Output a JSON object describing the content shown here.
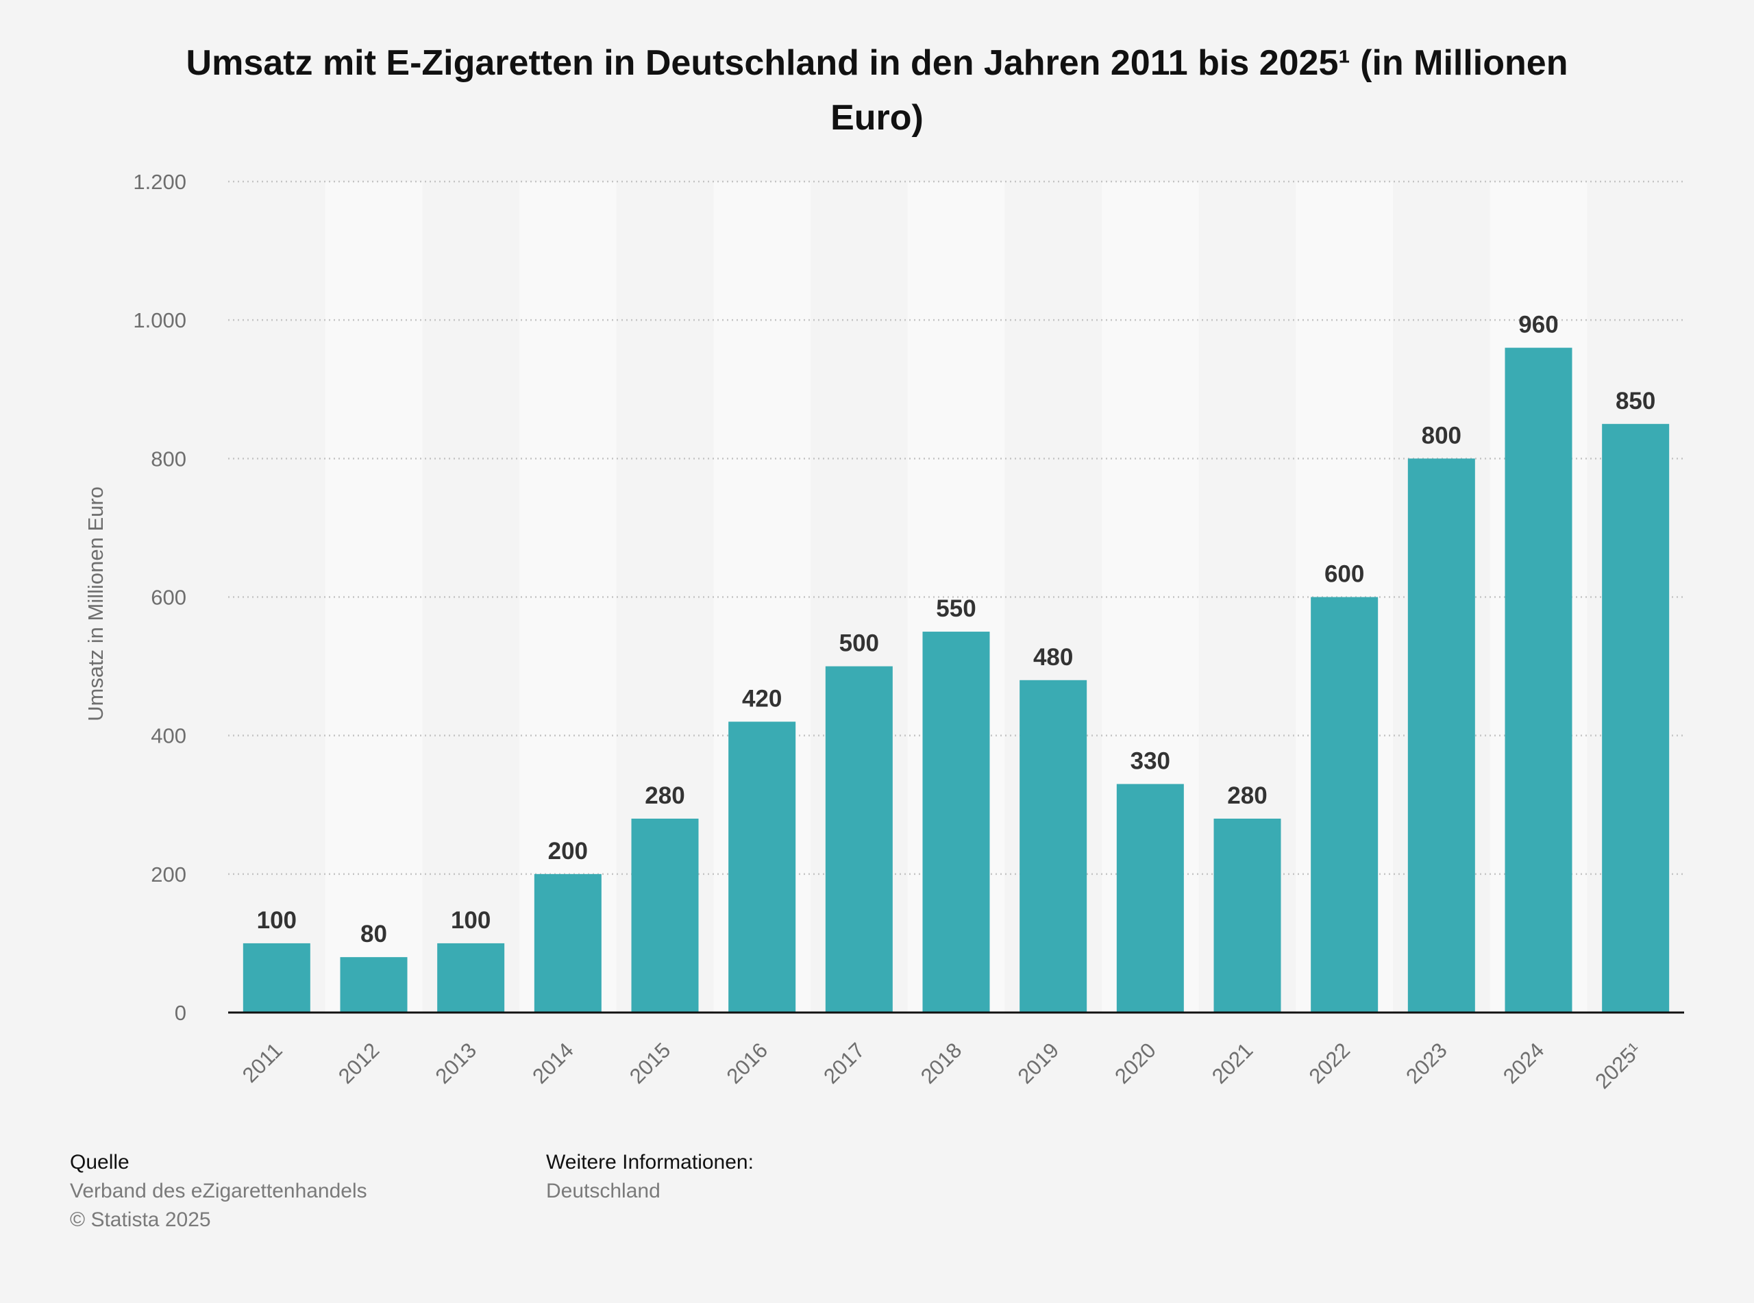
{
  "chart_data": {
    "type": "bar",
    "title": "Umsatz mit E-Zigaretten in Deutschland in den Jahren 2011 bis 2025¹ (in Millionen Euro)",
    "xlabel": "",
    "ylabel": "Umsatz in Millionen Euro",
    "categories": [
      "2011",
      "2012",
      "2013",
      "2014",
      "2015",
      "2016",
      "2017",
      "2018",
      "2019",
      "2020",
      "2021",
      "2022",
      "2023",
      "2024",
      "2025¹"
    ],
    "values": [
      100,
      80,
      100,
      200,
      280,
      420,
      500,
      550,
      480,
      330,
      280,
      600,
      800,
      960,
      850
    ],
    "data_labels": [
      "100",
      "80",
      "100",
      "200",
      "280",
      "420",
      "500",
      "550",
      "480",
      "330",
      "280",
      "600",
      "800",
      "960",
      "850"
    ],
    "ylim": [
      0,
      1200
    ],
    "yticks": [
      0,
      200,
      400,
      600,
      800,
      1000,
      1200
    ],
    "ytick_labels": [
      "0",
      "200",
      "400",
      "600",
      "800",
      "1.000",
      "1.200"
    ],
    "grid": true,
    "colors": {
      "bar": "#3aabb3",
      "background": "#f4f4f4",
      "band_alt": "#f9f9f9",
      "grid": "#c4c4c4"
    }
  },
  "footer": {
    "source_heading": "Quelle",
    "source_text": "Verband des eZigarettenhandels",
    "copyright": "© Statista 2025",
    "info_heading": "Weitere Informationen:",
    "info_text": "Deutschland"
  }
}
